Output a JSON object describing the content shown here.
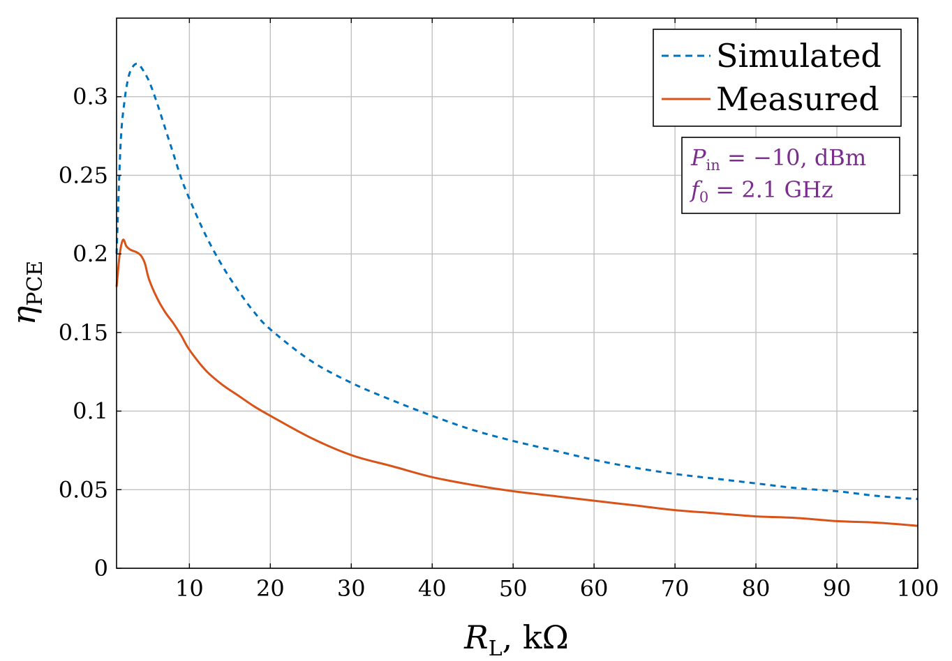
{
  "chart_data": {
    "type": "line",
    "xlabel": {
      "main": "R",
      "sub": "L",
      "unit": ", kΩ"
    },
    "ylabel": {
      "main": "η",
      "sub": "PCE"
    },
    "xlim": [
      1,
      100
    ],
    "ylim": [
      0,
      0.35
    ],
    "xticks": [
      10,
      20,
      30,
      40,
      50,
      60,
      70,
      80,
      90,
      100
    ],
    "xtick_labels": [
      "10",
      "20",
      "30",
      "40",
      "50",
      "60",
      "70",
      "80",
      "90",
      "100"
    ],
    "yticks": [
      0,
      0.05,
      0.1,
      0.15,
      0.2,
      0.25,
      0.3
    ],
    "ytick_labels": [
      "0",
      "0.05",
      "0.1",
      "0.15",
      "0.2",
      "0.25",
      "0.3"
    ],
    "grid": true,
    "legend": "top-right",
    "series": [
      {
        "name": "Simulated",
        "color": "#0072BD",
        "style": "dashed",
        "x": [
          1,
          1.5,
          2,
          2.5,
          3,
          3.5,
          4,
          5,
          6,
          7,
          8,
          9,
          10,
          12,
          14,
          16,
          18,
          20,
          25,
          30,
          35,
          40,
          45,
          50,
          55,
          60,
          65,
          70,
          75,
          80,
          85,
          90,
          95,
          100
        ],
        "y": [
          0.2,
          0.27,
          0.298,
          0.313,
          0.319,
          0.321,
          0.319,
          0.31,
          0.296,
          0.28,
          0.264,
          0.248,
          0.235,
          0.212,
          0.193,
          0.177,
          0.163,
          0.152,
          0.132,
          0.118,
          0.107,
          0.097,
          0.088,
          0.081,
          0.075,
          0.069,
          0.064,
          0.06,
          0.057,
          0.054,
          0.051,
          0.049,
          0.046,
          0.044
        ]
      },
      {
        "name": "Measured",
        "color": "#D95319",
        "style": "solid",
        "x": [
          1,
          1.4,
          1.8,
          2.2,
          2.6,
          3,
          3.5,
          4,
          4.5,
          5,
          6,
          7,
          8,
          9,
          10,
          12,
          14,
          16,
          18,
          20,
          25,
          30,
          35,
          40,
          45,
          50,
          55,
          60,
          65,
          70,
          75,
          80,
          85,
          90,
          95,
          100
        ],
        "y": [
          0.179,
          0.2,
          0.209,
          0.205,
          0.203,
          0.202,
          0.201,
          0.199,
          0.194,
          0.184,
          0.172,
          0.163,
          0.156,
          0.148,
          0.139,
          0.126,
          0.117,
          0.11,
          0.103,
          0.097,
          0.083,
          0.072,
          0.065,
          0.058,
          0.053,
          0.049,
          0.046,
          0.043,
          0.04,
          0.037,
          0.035,
          0.033,
          0.032,
          0.03,
          0.029,
          0.027
        ]
      }
    ],
    "annotation": {
      "line1": {
        "sym": "P",
        "sub": "in",
        "rest": " = −10, dBm"
      },
      "line2": {
        "sym": "f",
        "sub": "0",
        "rest": " = 2.1 GHz"
      },
      "color": "#7B2D8E"
    }
  }
}
